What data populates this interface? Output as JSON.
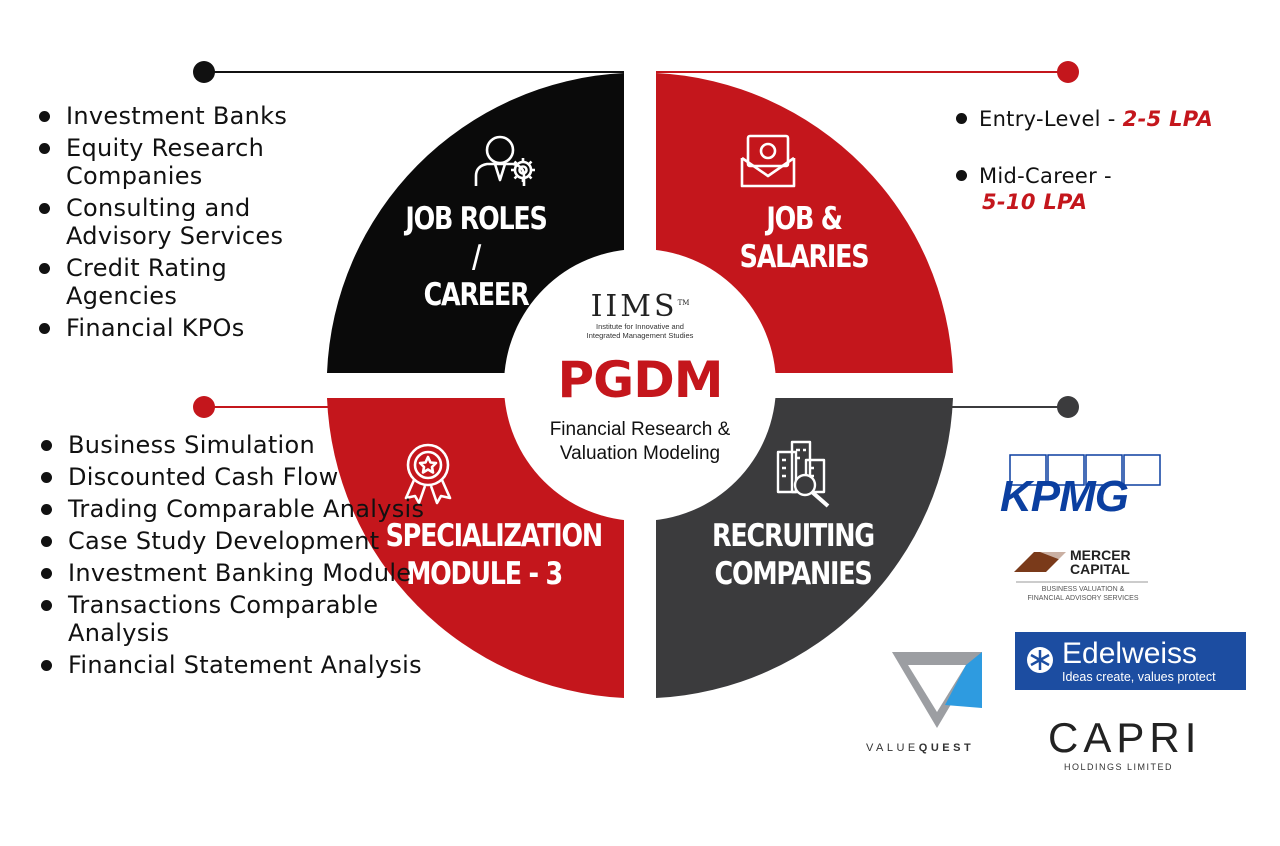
{
  "center": {
    "brand": "IIMS",
    "tm": "TM",
    "institute_line1": "Institute for Innovative and",
    "institute_line2": "Integrated Management Studies",
    "program": "PGDM",
    "subtitle_line1": "Financial Research &",
    "subtitle_line2": "Valuation Modeling"
  },
  "quadrants": {
    "job_roles": {
      "line1": "JOB ROLES /",
      "line2": "CAREER",
      "icon": "businessman-gear-icon"
    },
    "salaries": {
      "line1": "JOB &",
      "line2": "SALARIES",
      "icon": "money-envelope-icon"
    },
    "specialization": {
      "line1": "SPECIALIZATION",
      "line2": "MODULE - 3",
      "icon": "award-badge-icon"
    },
    "recruiting": {
      "line1": "RECRUITING",
      "line2": "COMPANIES",
      "icon": "buildings-search-icon"
    }
  },
  "job_roles_list": [
    "Investment Banks",
    "Equity Research Companies",
    "Consulting and Advisory Services",
    "Credit Rating Agencies",
    "Financial KPOs"
  ],
  "salaries_list": [
    {
      "label": "Entry-Level - ",
      "value": "2-5 LPA"
    },
    {
      "label": "Mid-Career - ",
      "value": "5-10 LPA"
    }
  ],
  "modules_list": [
    "Business Simulation",
    "Discounted Cash Flow",
    "Trading Comparable Analysis",
    "Case Study Development",
    "Investment Banking Module",
    "Transactions Comparable Analysis",
    "Financial Statement Analysis"
  ],
  "companies": {
    "kpmg": "KPMG",
    "mercer_line1": "MERCER",
    "mercer_line2": "CAPITAL",
    "mercer_sub1": "BUSINESS VALUATION &",
    "mercer_sub2": "FINANCIAL ADVISORY SERVICES",
    "edelweiss": "Edelweiss",
    "edelweiss_tag": "Ideas create, values protect",
    "valuequest_a": "VALUE",
    "valuequest_b": "QUEST",
    "capri": "CAPRI",
    "capri_sub": "HOLDINGS LIMITED"
  },
  "colors": {
    "red": "#c4161c",
    "black": "#0a0a0a",
    "grey": "#3b3b3d",
    "kpmg_blue": "#0b3fa0",
    "edelweiss_blue": "#1c4da1"
  }
}
